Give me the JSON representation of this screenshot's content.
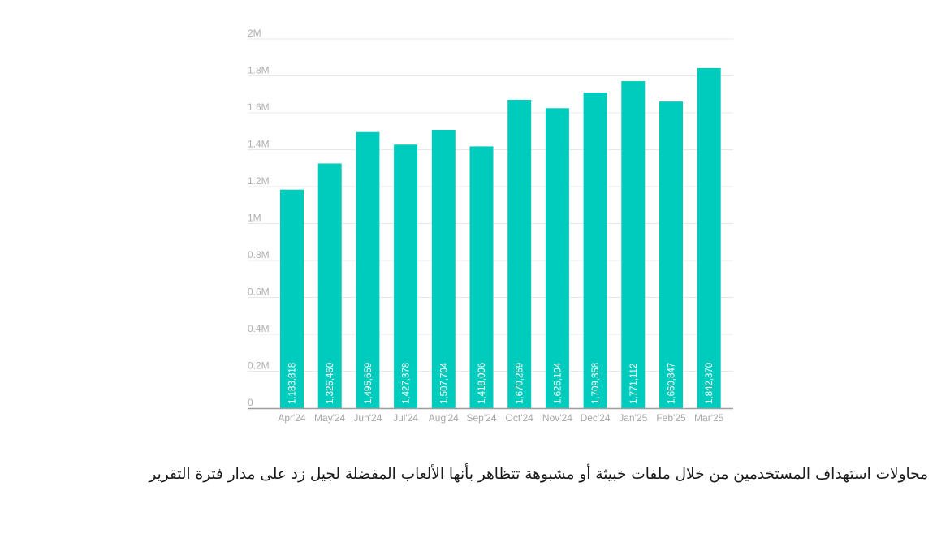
{
  "chart_data": {
    "type": "bar",
    "categories": [
      "Apr'24",
      "May'24",
      "Jun'24",
      "Jul'24",
      "Aug'24",
      "Sep'24",
      "Oct'24",
      "Nov'24",
      "Dec'24",
      "Jan'25",
      "Feb'25",
      "Mar'25"
    ],
    "values": [
      1183818,
      1325460,
      1495659,
      1427378,
      1507704,
      1418006,
      1670269,
      1625104,
      1709358,
      1771112,
      1660847,
      1842370
    ],
    "value_labels": [
      "1,183,818",
      "1,325,460",
      "1,495,659",
      "1,427,378",
      "1,507,704",
      "1,418,006",
      "1,670,269",
      "1,625,104",
      "1,709,358",
      "1,771,112",
      "1,660,847",
      "1,842,370"
    ],
    "ylim": [
      0,
      2000000
    ],
    "yticks": [
      0,
      200000,
      400000,
      600000,
      800000,
      1000000,
      1200000,
      1400000,
      1600000,
      1800000,
      2000000
    ],
    "ytick_labels": [
      "0",
      "0.2M",
      "0.4M",
      "0.6M",
      "0.8M",
      "1M",
      "1.2M",
      "1.4M",
      "1.6M",
      "1.8M",
      "2M"
    ],
    "grid": true,
    "bar_color": "#00ccbd"
  },
  "caption": "محاولات استهداف المستخدمين من خلال ملفات خبيثة أو مشبوهة تتظاهر بأنها الألعاب المفضلة لجيل زد على مدار فترة التقرير"
}
